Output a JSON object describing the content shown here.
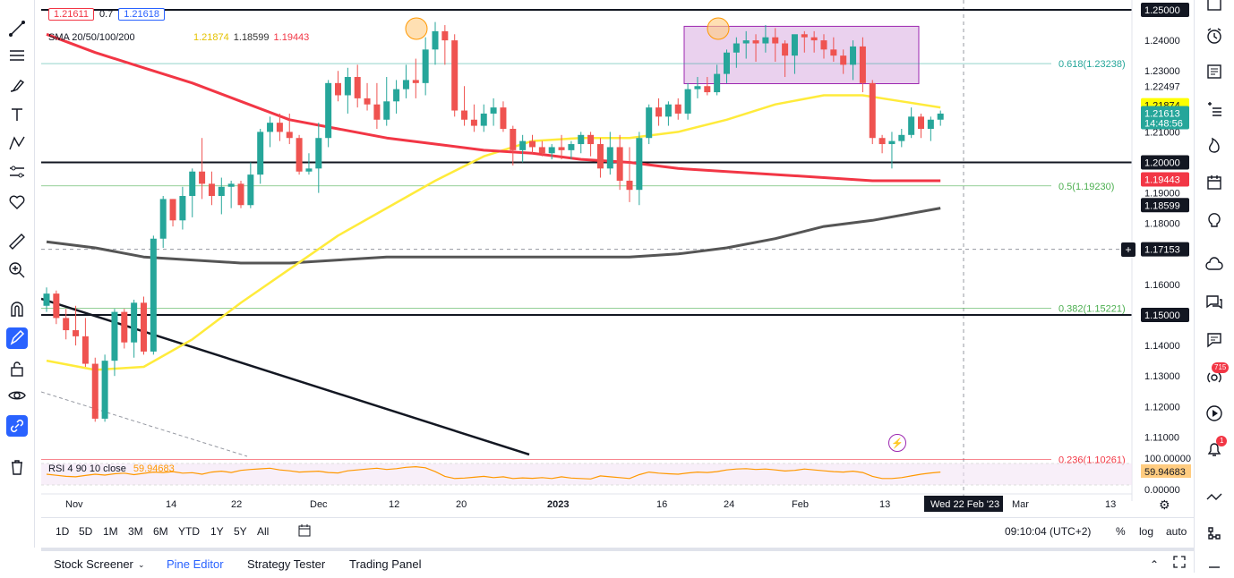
{
  "chart_data": {
    "type": "candlestick",
    "symbol_quote": {
      "bid": "1.21611",
      "spread": "0.7",
      "ask": "1.21618"
    },
    "indicator_label": "SMA 20/50/100/200",
    "sma_values": [
      {
        "value": "1.21874",
        "color": "#f5d300"
      },
      {
        "value": "1.18599",
        "color": "#333333"
      },
      {
        "value": "1.19443",
        "color": "#f23645"
      }
    ],
    "y_ticks": [
      "1.24000",
      "1.23000",
      "1.22497",
      "1.21000",
      "1.19000",
      "1.18000",
      "1.16000",
      "1.14000",
      "1.13000",
      "1.12000",
      "1.11000"
    ],
    "y_tick_values": [
      1.24,
      1.23,
      1.22497,
      1.21,
      1.19,
      1.18,
      1.16,
      1.14,
      1.13,
      1.12,
      1.11
    ],
    "ylim": [
      1.1,
      1.255
    ],
    "price_tags": [
      {
        "value": 1.25,
        "label": "1.25000",
        "bg": "#131722",
        "fg": "#ffffff"
      },
      {
        "value": 1.21874,
        "label": "1.21874",
        "bg": "#ffff00",
        "fg": "#131722"
      },
      {
        "value": 1.21613,
        "label": "1.21613",
        "bg": "#26a69a",
        "fg": "#ffffff",
        "sub": "14:48:56"
      },
      {
        "value": 1.2,
        "label": "1.20000",
        "bg": "#131722",
        "fg": "#ffffff"
      },
      {
        "value": 1.19443,
        "label": "1.19443",
        "bg": "#f23645",
        "fg": "#ffffff"
      },
      {
        "value": 1.18599,
        "label": "1.18599",
        "bg": "#131722",
        "fg": "#ffffff"
      },
      {
        "value": 1.17153,
        "label": "1.17153",
        "bg": "#131722",
        "fg": "#ffffff"
      },
      {
        "value": 1.15,
        "label": "1.15000",
        "bg": "#131722",
        "fg": "#ffffff"
      }
    ],
    "horizontal_lines": [
      1.25,
      1.2,
      1.15
    ],
    "fib_levels": [
      {
        "label": "0.618(1.23238)",
        "value": 1.23238,
        "color": "#26a69a"
      },
      {
        "label": "0.5(1.19230)",
        "value": 1.1923,
        "color": "#4caf50"
      },
      {
        "label": "0.382(1.15221)",
        "value": 1.15221,
        "color": "#4caf50"
      },
      {
        "label": "0.236(1.10261)",
        "value": 1.10261,
        "color": "#f23645"
      }
    ],
    "x_ticks": [
      "Nov",
      "14",
      "22",
      "Dec",
      "12",
      "20",
      "2023",
      "16",
      "24",
      "Feb",
      "13",
      "Mar",
      "13"
    ],
    "x_cursor_label": "Wed 22 Feb '23",
    "candles": [
      [
        1.153,
        1.159,
        1.151,
        1.157
      ],
      [
        1.157,
        1.158,
        1.147,
        1.149
      ],
      [
        1.149,
        1.152,
        1.142,
        1.145
      ],
      [
        1.145,
        1.153,
        1.14,
        1.143
      ],
      [
        1.143,
        1.149,
        1.133,
        1.134
      ],
      [
        1.134,
        1.136,
        1.115,
        1.116
      ],
      [
        1.116,
        1.137,
        1.115,
        1.135
      ],
      [
        1.135,
        1.152,
        1.13,
        1.151
      ],
      [
        1.151,
        1.152,
        1.139,
        1.141
      ],
      [
        1.141,
        1.155,
        1.136,
        1.154
      ],
      [
        1.154,
        1.156,
        1.137,
        1.138
      ],
      [
        1.138,
        1.176,
        1.137,
        1.175
      ],
      [
        1.175,
        1.189,
        1.172,
        1.188
      ],
      [
        1.188,
        1.188,
        1.179,
        1.181
      ],
      [
        1.181,
        1.192,
        1.178,
        1.189
      ],
      [
        1.189,
        1.198,
        1.182,
        1.197
      ],
      [
        1.197,
        1.208,
        1.188,
        1.193
      ],
      [
        1.193,
        1.197,
        1.186,
        1.189
      ],
      [
        1.189,
        1.195,
        1.183,
        1.192
      ],
      [
        1.192,
        1.194,
        1.185,
        1.193
      ],
      [
        1.193,
        1.194,
        1.185,
        1.186
      ],
      [
        1.186,
        1.2,
        1.185,
        1.196
      ],
      [
        1.196,
        1.211,
        1.193,
        1.21
      ],
      [
        1.21,
        1.215,
        1.205,
        1.213
      ],
      [
        1.213,
        1.216,
        1.207,
        1.21
      ],
      [
        1.21,
        1.216,
        1.206,
        1.208
      ],
      [
        1.208,
        1.209,
        1.196,
        1.197
      ],
      [
        1.197,
        1.203,
        1.196,
        1.198
      ],
      [
        1.198,
        1.213,
        1.19,
        1.208
      ],
      [
        1.208,
        1.227,
        1.205,
        1.226
      ],
      [
        1.226,
        1.23,
        1.22,
        1.222
      ],
      [
        1.222,
        1.231,
        1.216,
        1.228
      ],
      [
        1.228,
        1.232,
        1.218,
        1.221
      ],
      [
        1.221,
        1.226,
        1.217,
        1.219
      ],
      [
        1.219,
        1.226,
        1.211,
        1.214
      ],
      [
        1.214,
        1.228,
        1.212,
        1.22
      ],
      [
        1.22,
        1.227,
        1.216,
        1.224
      ],
      [
        1.224,
        1.232,
        1.221,
        1.227
      ],
      [
        1.227,
        1.234,
        1.221,
        1.226
      ],
      [
        1.226,
        1.241,
        1.222,
        1.237
      ],
      [
        1.237,
        1.246,
        1.232,
        1.243
      ],
      [
        1.243,
        1.245,
        1.232,
        1.24
      ],
      [
        1.24,
        1.242,
        1.215,
        1.217
      ],
      [
        1.217,
        1.225,
        1.212,
        1.214
      ],
      [
        1.214,
        1.219,
        1.21,
        1.212
      ],
      [
        1.212,
        1.219,
        1.21,
        1.216
      ],
      [
        1.216,
        1.221,
        1.212,
        1.218
      ],
      [
        1.218,
        1.22,
        1.21,
        1.211
      ],
      [
        1.211,
        1.212,
        1.199,
        1.204
      ],
      [
        1.204,
        1.209,
        1.2,
        1.207
      ],
      [
        1.207,
        1.209,
        1.203,
        1.205
      ],
      [
        1.205,
        1.207,
        1.202,
        1.203
      ],
      [
        1.203,
        1.206,
        1.201,
        1.205
      ],
      [
        1.205,
        1.209,
        1.201,
        1.204
      ],
      [
        1.204,
        1.207,
        1.201,
        1.206
      ],
      [
        1.206,
        1.21,
        1.203,
        1.209
      ],
      [
        1.209,
        1.21,
        1.202,
        1.206
      ],
      [
        1.206,
        1.208,
        1.195,
        1.198
      ],
      [
        1.198,
        1.21,
        1.196,
        1.205
      ],
      [
        1.205,
        1.209,
        1.191,
        1.194
      ],
      [
        1.194,
        1.205,
        1.187,
        1.191
      ],
      [
        1.191,
        1.21,
        1.186,
        1.208
      ],
      [
        1.208,
        1.219,
        1.206,
        1.218
      ],
      [
        1.218,
        1.221,
        1.212,
        1.215
      ],
      [
        1.215,
        1.22,
        1.212,
        1.219
      ],
      [
        1.219,
        1.221,
        1.214,
        1.216
      ],
      [
        1.216,
        1.226,
        1.214,
        1.224
      ],
      [
        1.224,
        1.228,
        1.221,
        1.225
      ],
      [
        1.225,
        1.228,
        1.222,
        1.223
      ],
      [
        1.223,
        1.232,
        1.222,
        1.229
      ],
      [
        1.229,
        1.237,
        1.226,
        1.236
      ],
      [
        1.236,
        1.241,
        1.231,
        1.239
      ],
      [
        1.239,
        1.243,
        1.234,
        1.24
      ],
      [
        1.24,
        1.242,
        1.233,
        1.239
      ],
      [
        1.239,
        1.245,
        1.236,
        1.241
      ],
      [
        1.241,
        1.244,
        1.233,
        1.239
      ],
      [
        1.239,
        1.24,
        1.228,
        1.235
      ],
      [
        1.235,
        1.241,
        1.229,
        1.242
      ],
      [
        1.242,
        1.243,
        1.236,
        1.241
      ],
      [
        1.241,
        1.243,
        1.236,
        1.24
      ],
      [
        1.24,
        1.242,
        1.234,
        1.237
      ],
      [
        1.237,
        1.241,
        1.233,
        1.235
      ],
      [
        1.235,
        1.237,
        1.229,
        1.232
      ],
      [
        1.232,
        1.24,
        1.227,
        1.238
      ],
      [
        1.238,
        1.241,
        1.223,
        1.226
      ],
      [
        1.226,
        1.227,
        1.206,
        1.208
      ],
      [
        1.208,
        1.209,
        1.203,
        1.206
      ],
      [
        1.206,
        1.21,
        1.198,
        1.207
      ],
      [
        1.207,
        1.211,
        1.205,
        1.209
      ],
      [
        1.209,
        1.218,
        1.208,
        1.215
      ],
      [
        1.215,
        1.216,
        1.208,
        1.211
      ],
      [
        1.211,
        1.215,
        1.207,
        1.214
      ],
      [
        1.214,
        1.217,
        1.212,
        1.216
      ]
    ],
    "sma20": [
      [
        0,
        1.135
      ],
      [
        5,
        1.132
      ],
      [
        10,
        1.133
      ],
      [
        15,
        1.142
      ],
      [
        20,
        1.154
      ],
      [
        25,
        1.165
      ],
      [
        30,
        1.176
      ],
      [
        35,
        1.185
      ],
      [
        40,
        1.194
      ],
      [
        45,
        1.202
      ],
      [
        50,
        1.207
      ],
      [
        55,
        1.208
      ],
      [
        60,
        1.208
      ],
      [
        65,
        1.21
      ],
      [
        70,
        1.214
      ],
      [
        75,
        1.219
      ],
      [
        80,
        1.222
      ],
      [
        84,
        1.222
      ],
      [
        88,
        1.22
      ],
      [
        92,
        1.218
      ]
    ],
    "sma100": [
      [
        0,
        1.174
      ],
      [
        5,
        1.172
      ],
      [
        10,
        1.169
      ],
      [
        15,
        1.168
      ],
      [
        20,
        1.167
      ],
      [
        25,
        1.167
      ],
      [
        30,
        1.168
      ],
      [
        35,
        1.169
      ],
      [
        40,
        1.169
      ],
      [
        45,
        1.169
      ],
      [
        50,
        1.169
      ],
      [
        55,
        1.169
      ],
      [
        60,
        1.169
      ],
      [
        65,
        1.17
      ],
      [
        70,
        1.172
      ],
      [
        75,
        1.175
      ],
      [
        80,
        1.179
      ],
      [
        85,
        1.181
      ],
      [
        92,
        1.185
      ]
    ],
    "sma200": [
      [
        0,
        1.242
      ],
      [
        5,
        1.236
      ],
      [
        10,
        1.231
      ],
      [
        15,
        1.226
      ],
      [
        20,
        1.22
      ],
      [
        25,
        1.214
      ],
      [
        30,
        1.211
      ],
      [
        35,
        1.208
      ],
      [
        40,
        1.206
      ],
      [
        45,
        1.204
      ],
      [
        50,
        1.203
      ],
      [
        55,
        1.201
      ],
      [
        60,
        1.2
      ],
      [
        65,
        1.198
      ],
      [
        70,
        1.197
      ],
      [
        75,
        1.196
      ],
      [
        80,
        1.195
      ],
      [
        85,
        1.194
      ],
      [
        92,
        1.194
      ]
    ],
    "rsi_label": "RSI 4 90 10 close",
    "rsi_value": "59.94683",
    "rsi_ticks": [
      "100.00000",
      "0.00000"
    ],
    "rsi_series": [
      50,
      45,
      40,
      38,
      44,
      50,
      46,
      52,
      55,
      48,
      54,
      60,
      58,
      62,
      55,
      57,
      50,
      60,
      64,
      58,
      68,
      72,
      75,
      78,
      70,
      66,
      60,
      62,
      64,
      58,
      56,
      66,
      70,
      74,
      78,
      72,
      76,
      82,
      85,
      80,
      62,
      40,
      30,
      32,
      36,
      40,
      34,
      38,
      30,
      33,
      31,
      34,
      30,
      38,
      32,
      30,
      28,
      42,
      38,
      34,
      30,
      48,
      60,
      55,
      52,
      50,
      56,
      60,
      58,
      62,
      70,
      74,
      76,
      72,
      74,
      70,
      65,
      68,
      74,
      70,
      66,
      62,
      60,
      64,
      58,
      40,
      30,
      30,
      34,
      42,
      50,
      56,
      60
    ]
  },
  "toolbar_bottom": {
    "ranges": [
      "1D",
      "5D",
      "1M",
      "3M",
      "6M",
      "YTD",
      "1Y",
      "5Y",
      "All"
    ],
    "time": "09:10:04 (UTC+2)",
    "pct": "%",
    "log": "log",
    "auto": "auto"
  },
  "tabs": [
    "Stock Screener",
    "Pine Editor",
    "Strategy Tester",
    "Trading Panel"
  ],
  "active_tab_color": "#2962ff",
  "notifications": {
    "alerts_count": "715",
    "messages_count": "1"
  }
}
